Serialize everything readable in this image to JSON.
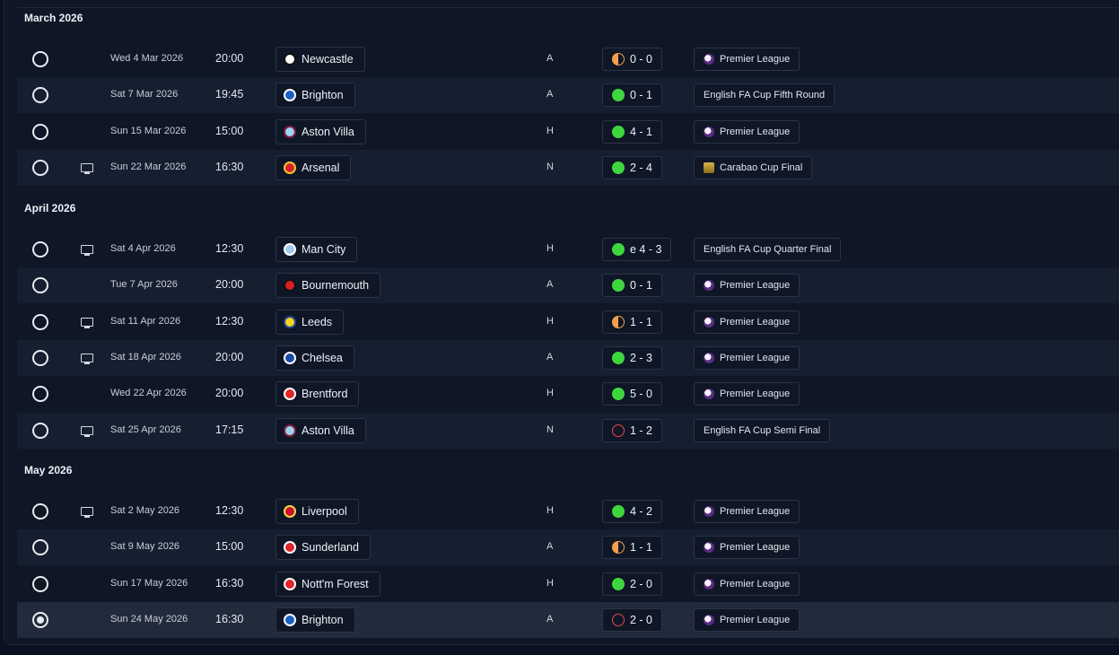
{
  "sections": [
    {
      "month": "March 2026",
      "fixtures": [
        {
          "date": "Wed 4 Mar 2026",
          "time": "20:00",
          "opponent": "Newcastle",
          "crest": "newcastle-crest-icon",
          "venue": "A",
          "outcome": "draw",
          "score": "0 - 0",
          "competition": "Premier League",
          "comp_icon": "premier-league-icon",
          "tv": false
        },
        {
          "date": "Sat 7 Mar 2026",
          "time": "19:45",
          "opponent": "Brighton",
          "crest": "brighton-crest-icon",
          "venue": "A",
          "outcome": "win",
          "score": "0 - 1",
          "competition": "English FA Cup Fifth Round",
          "comp_icon": "",
          "tv": false
        },
        {
          "date": "Sun 15 Mar 2026",
          "time": "15:00",
          "opponent": "Aston Villa",
          "crest": "aston-villa-crest-icon",
          "venue": "H",
          "outcome": "win",
          "score": "4 - 1",
          "competition": "Premier League",
          "comp_icon": "premier-league-icon",
          "tv": false
        },
        {
          "date": "Sun 22 Mar 2026",
          "time": "16:30",
          "opponent": "Arsenal",
          "crest": "arsenal-crest-icon",
          "venue": "N",
          "outcome": "win",
          "score": "2 - 4",
          "competition": "Carabao Cup Final",
          "comp_icon": "carabao-cup-icon",
          "tv": true
        }
      ]
    },
    {
      "month": "April 2026",
      "fixtures": [
        {
          "date": "Sat 4 Apr 2026",
          "time": "12:30",
          "opponent": "Man City",
          "crest": "man-city-crest-icon",
          "venue": "H",
          "outcome": "win",
          "score": "e 4 - 3",
          "competition": "English FA Cup Quarter Final",
          "comp_icon": "",
          "tv": true
        },
        {
          "date": "Tue 7 Apr 2026",
          "time": "20:00",
          "opponent": "Bournemouth",
          "crest": "bournemouth-crest-icon",
          "venue": "A",
          "outcome": "win",
          "score": "0 - 1",
          "competition": "Premier League",
          "comp_icon": "premier-league-icon",
          "tv": false
        },
        {
          "date": "Sat 11 Apr 2026",
          "time": "12:30",
          "opponent": "Leeds",
          "crest": "leeds-crest-icon",
          "venue": "H",
          "outcome": "draw",
          "score": "1 - 1",
          "competition": "Premier League",
          "comp_icon": "premier-league-icon",
          "tv": true
        },
        {
          "date": "Sat 18 Apr 2026",
          "time": "20:00",
          "opponent": "Chelsea",
          "crest": "chelsea-crest-icon",
          "venue": "A",
          "outcome": "win",
          "score": "2 - 3",
          "competition": "Premier League",
          "comp_icon": "premier-league-icon",
          "tv": true
        },
        {
          "date": "Wed 22 Apr 2026",
          "time": "20:00",
          "opponent": "Brentford",
          "crest": "brentford-crest-icon",
          "venue": "H",
          "outcome": "win",
          "score": "5 - 0",
          "competition": "Premier League",
          "comp_icon": "premier-league-icon",
          "tv": false
        },
        {
          "date": "Sat 25 Apr 2026",
          "time": "17:15",
          "opponent": "Aston Villa",
          "crest": "aston-villa-crest-icon",
          "venue": "N",
          "outcome": "loss",
          "score": "1 - 2",
          "competition": "English FA Cup Semi Final",
          "comp_icon": "",
          "tv": true
        }
      ]
    },
    {
      "month": "May 2026",
      "fixtures": [
        {
          "date": "Sat 2 May 2026",
          "time": "12:30",
          "opponent": "Liverpool",
          "crest": "liverpool-crest-icon",
          "venue": "H",
          "outcome": "win",
          "score": "4 - 2",
          "competition": "Premier League",
          "comp_icon": "premier-league-icon",
          "tv": true
        },
        {
          "date": "Sat 9 May 2026",
          "time": "15:00",
          "opponent": "Sunderland",
          "crest": "sunderland-crest-icon",
          "venue": "A",
          "outcome": "draw",
          "score": "1 - 1",
          "competition": "Premier League",
          "comp_icon": "premier-league-icon",
          "tv": false
        },
        {
          "date": "Sun 17 May 2026",
          "time": "16:30",
          "opponent": "Nott'm Forest",
          "crest": "nottm-forest-crest-icon",
          "venue": "H",
          "outcome": "win",
          "score": "2 - 0",
          "competition": "Premier League",
          "comp_icon": "premier-league-icon",
          "tv": false
        },
        {
          "date": "Sun 24 May 2026",
          "time": "16:30",
          "opponent": "Brighton",
          "crest": "brighton-crest-icon",
          "venue": "A",
          "outcome": "loss",
          "score": "2 - 0",
          "competition": "Premier League",
          "comp_icon": "premier-league-icon",
          "tv": false,
          "selected": true
        }
      ]
    }
  ],
  "colors": {
    "win": "#3ed63e",
    "draw": "#f2a04a",
    "loss": "#e24a4a",
    "background": "#0f1626",
    "row_alt": "#161f30"
  },
  "crest_colors": {
    "newcastle-crest-icon": [
      "#ffffff",
      "#111111"
    ],
    "brighton-crest-icon": [
      "#1b5fc4",
      "#ffffff"
    ],
    "aston-villa-crest-icon": [
      "#9fd3f2",
      "#7a1f3d"
    ],
    "arsenal-crest-icon": [
      "#d8222b",
      "#f1c232"
    ],
    "man-city-crest-icon": [
      "#9fcbee",
      "#ffffff"
    ],
    "bournemouth-crest-icon": [
      "#d7202a",
      "#111111"
    ],
    "leeds-crest-icon": [
      "#f6d520",
      "#1d4a96"
    ],
    "chelsea-crest-icon": [
      "#1a4aa5",
      "#ffffff"
    ],
    "brentford-crest-icon": [
      "#e0262b",
      "#ffffff"
    ],
    "liverpool-crest-icon": [
      "#c8102e",
      "#f2d64b"
    ],
    "sunderland-crest-icon": [
      "#d9262b",
      "#ffffff"
    ],
    "nottm-forest-crest-icon": [
      "#e0262b",
      "#ffffff"
    ]
  }
}
